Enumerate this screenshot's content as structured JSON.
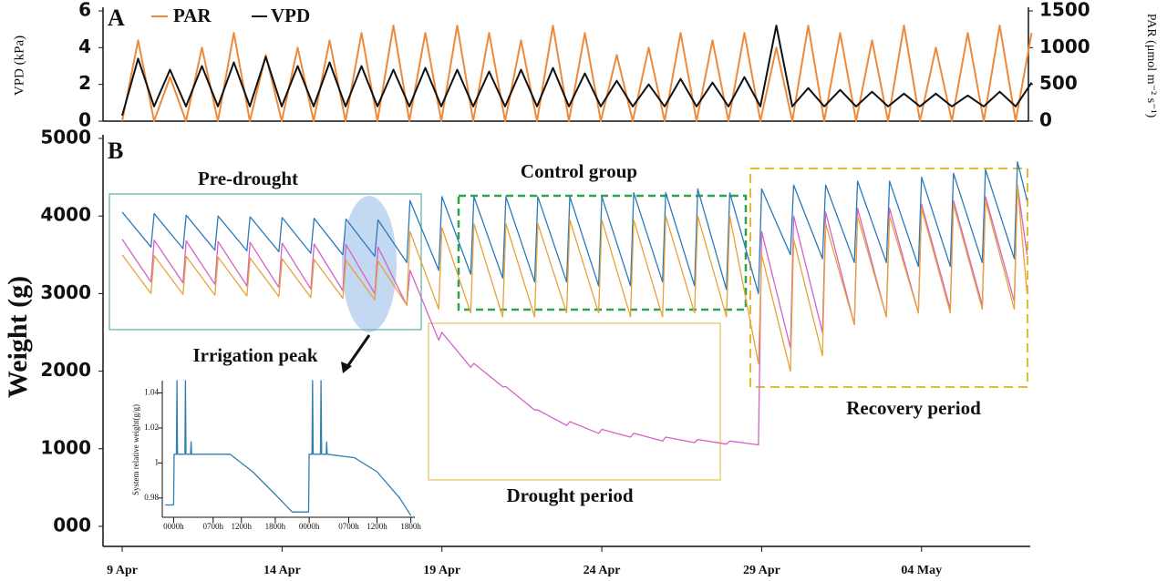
{
  "chart_data": [
    {
      "type": "line",
      "panel_label": "A",
      "ylabel": "VPD (kPa)",
      "y2label": "PAR (μmol m⁻² s⁻¹)",
      "xlim": [
        -0.6,
        28.4
      ],
      "ylim": [
        0,
        6
      ],
      "yticks": [
        0,
        2,
        4,
        6
      ],
      "y2lim": [
        0,
        1500
      ],
      "y2ticks": [
        0,
        500,
        1000,
        1500
      ],
      "x": [
        0,
        0.5,
        1,
        1.5,
        2,
        2.5,
        3,
        3.5,
        4,
        4.5,
        5,
        5.5,
        6,
        6.5,
        7,
        7.5,
        8,
        8.5,
        9,
        9.5,
        10,
        10.5,
        11,
        11.5,
        12,
        12.5,
        13,
        13.5,
        14,
        14.5,
        15,
        15.5,
        16,
        16.5,
        17,
        17.5,
        18,
        18.5,
        19,
        19.5,
        20,
        20.5,
        21,
        21.5,
        22,
        22.5,
        23,
        23.5,
        24,
        24.5,
        25,
        25.5,
        26,
        26.5,
        27,
        27.5,
        28,
        28.5
      ],
      "series": [
        {
          "name": "PAR",
          "color": "#ef8a3a",
          "axis": "y2",
          "values": [
            0,
            1100,
            0,
            600,
            0,
            1000,
            0,
            1200,
            0,
            900,
            0,
            1000,
            0,
            1100,
            0,
            1200,
            0,
            1300,
            0,
            1200,
            0,
            1300,
            0,
            1200,
            0,
            1100,
            0,
            1300,
            0,
            1200,
            0,
            900,
            0,
            1000,
            0,
            1200,
            0,
            1100,
            0,
            1200,
            0,
            1000,
            0,
            1300,
            0,
            1200,
            0,
            1100,
            0,
            1300,
            0,
            1000,
            0,
            1200,
            0,
            1300,
            0,
            1200
          ]
        },
        {
          "name": "VPD",
          "color": "#111111",
          "values": [
            0.3,
            3.4,
            0.8,
            2.8,
            0.8,
            3.0,
            0.8,
            3.2,
            0.8,
            3.5,
            0.8,
            3.0,
            0.8,
            3.2,
            0.8,
            3.0,
            0.8,
            2.8,
            0.8,
            2.9,
            0.8,
            2.8,
            0.8,
            2.7,
            0.8,
            2.8,
            0.8,
            2.9,
            0.8,
            2.6,
            0.8,
            2.2,
            0.8,
            2.0,
            0.8,
            2.3,
            0.8,
            2.1,
            0.8,
            2.4,
            0.8,
            5.2,
            0.8,
            1.8,
            0.8,
            1.7,
            0.8,
            1.6,
            0.8,
            1.5,
            0.8,
            1.5,
            0.8,
            1.4,
            0.8,
            1.6,
            0.8,
            2.1
          ]
        }
      ]
    },
    {
      "type": "line",
      "panel_label": "B",
      "ylabel": "Weight (g)",
      "annotations": [
        "Pre-drought",
        "Control group",
        "Irrigation peak",
        "Drought period",
        "Recovery period"
      ],
      "xlim": [
        -0.6,
        28.4
      ],
      "ylim": [
        0,
        5000
      ],
      "yticks": [
        {
          "value": 0,
          "label": "000"
        },
        1000,
        2000,
        3000,
        4000,
        5000
      ],
      "xticks": [
        {
          "value": 0,
          "label": "9 Apr"
        },
        {
          "value": 5,
          "label": "14 Apr"
        },
        {
          "value": 10,
          "label": "19 Apr"
        },
        {
          "value": 15,
          "label": "24 Apr"
        },
        {
          "value": 20,
          "label": "29 Apr"
        },
        {
          "value": 25,
          "label": "04 May"
        }
      ],
      "x": [
        0,
        0.9,
        1,
        1.9,
        2,
        2.9,
        3,
        3.9,
        4,
        4.9,
        5,
        5.9,
        6,
        6.9,
        7,
        7.9,
        8,
        8.9,
        9,
        9.9,
        10,
        10.9,
        11,
        11.9,
        12,
        12.9,
        13,
        13.9,
        14,
        14.9,
        15,
        15.9,
        16,
        16.9,
        17,
        17.9,
        18,
        18.9,
        19,
        19.9,
        20,
        20.9,
        21,
        21.9,
        22,
        22.9,
        23,
        23.9,
        24,
        24.9,
        25,
        25.9,
        26,
        26.9,
        27,
        27.9,
        28,
        28.3
      ],
      "series": [
        {
          "color": "#2a7ab8",
          "values": [
            4050,
            3600,
            4030,
            3580,
            4010,
            3560,
            4000,
            3550,
            3990,
            3540,
            3980,
            3520,
            3970,
            3500,
            3960,
            3480,
            3950,
            3400,
            4200,
            3300,
            4250,
            3250,
            4250,
            3200,
            4250,
            3150,
            4250,
            3150,
            4250,
            3100,
            4250,
            3100,
            4300,
            3150,
            4300,
            3100,
            4350,
            3050,
            4300,
            3000,
            4350,
            3500,
            4400,
            3450,
            4400,
            3400,
            4450,
            3400,
            4450,
            3350,
            4500,
            3350,
            4550,
            3400,
            4600,
            3450,
            4700,
            4200
          ]
        },
        {
          "color": "#d462c4",
          "values": [
            3700,
            3150,
            3690,
            3140,
            3680,
            3120,
            3670,
            3100,
            3660,
            3080,
            3650,
            3060,
            3640,
            3040,
            3630,
            3000,
            3600,
            2850,
            3300,
            2400,
            2500,
            2050,
            2100,
            1800,
            1800,
            1500,
            1500,
            1300,
            1350,
            1200,
            1250,
            1150,
            1200,
            1100,
            1150,
            1080,
            1120,
            1060,
            1100,
            1050,
            3800,
            2300,
            4000,
            2500,
            4050,
            2600,
            4100,
            2700,
            4100,
            2750,
            4150,
            2800,
            4200,
            2850,
            4250,
            2900,
            4400,
            3500
          ]
        },
        {
          "color": "#e8a23a",
          "values": [
            3500,
            3000,
            3490,
            2990,
            3480,
            2980,
            3470,
            2970,
            3460,
            2960,
            3450,
            2950,
            3440,
            2940,
            3430,
            2920,
            3420,
            2850,
            3800,
            2800,
            3850,
            2750,
            3900,
            2700,
            3900,
            2700,
            3900,
            2750,
            3950,
            2750,
            3950,
            2700,
            3950,
            2700,
            4000,
            2750,
            4000,
            2700,
            4000,
            2100,
            3500,
            2000,
            3700,
            2200,
            3900,
            2600,
            4000,
            2700,
            4000,
            2750,
            4100,
            2750,
            4150,
            2800,
            4200,
            2800,
            4400,
            3000
          ]
        }
      ]
    },
    {
      "type": "line",
      "ylabel": "System relative weight(g/g)",
      "xlim": [
        -2,
        42.7
      ],
      "ylim": [
        0.969,
        1.047
      ],
      "yticks": [
        0.98,
        1,
        1.02,
        1.04
      ],
      "xticks": [
        {
          "value": 0,
          "label": "0000h"
        },
        {
          "value": 7,
          "label": "0700h"
        },
        {
          "value": 12,
          "label": "1200h"
        },
        {
          "value": 18,
          "label": "1800h"
        },
        {
          "value": 24,
          "label": "0000h"
        },
        {
          "value": 31,
          "label": "0700h"
        },
        {
          "value": 36,
          "label": "1200h"
        },
        {
          "value": 42,
          "label": "1800h"
        }
      ],
      "x": [
        -1.5,
        0,
        0.1,
        0.5,
        0.6,
        0.7,
        2,
        2.1,
        2.2,
        3,
        3.1,
        3.2,
        10,
        14,
        18,
        21,
        23.9,
        24,
        24.5,
        24.6,
        24.7,
        26,
        26.1,
        26.2,
        27,
        27.1,
        27.2,
        32,
        36,
        40,
        42
      ],
      "series": [
        {
          "color": "#2f7fb0",
          "values": [
            0.976,
            0.976,
            1.005,
            1.005,
            1.047,
            1.005,
            1.005,
            1.047,
            1.005,
            1.005,
            1.012,
            1.005,
            1.005,
            0.995,
            0.982,
            0.972,
            0.972,
            1.005,
            1.005,
            1.047,
            1.005,
            1.005,
            1.047,
            1.005,
            1.005,
            1.012,
            1.005,
            1.003,
            0.995,
            0.98,
            0.97
          ]
        }
      ]
    }
  ]
}
